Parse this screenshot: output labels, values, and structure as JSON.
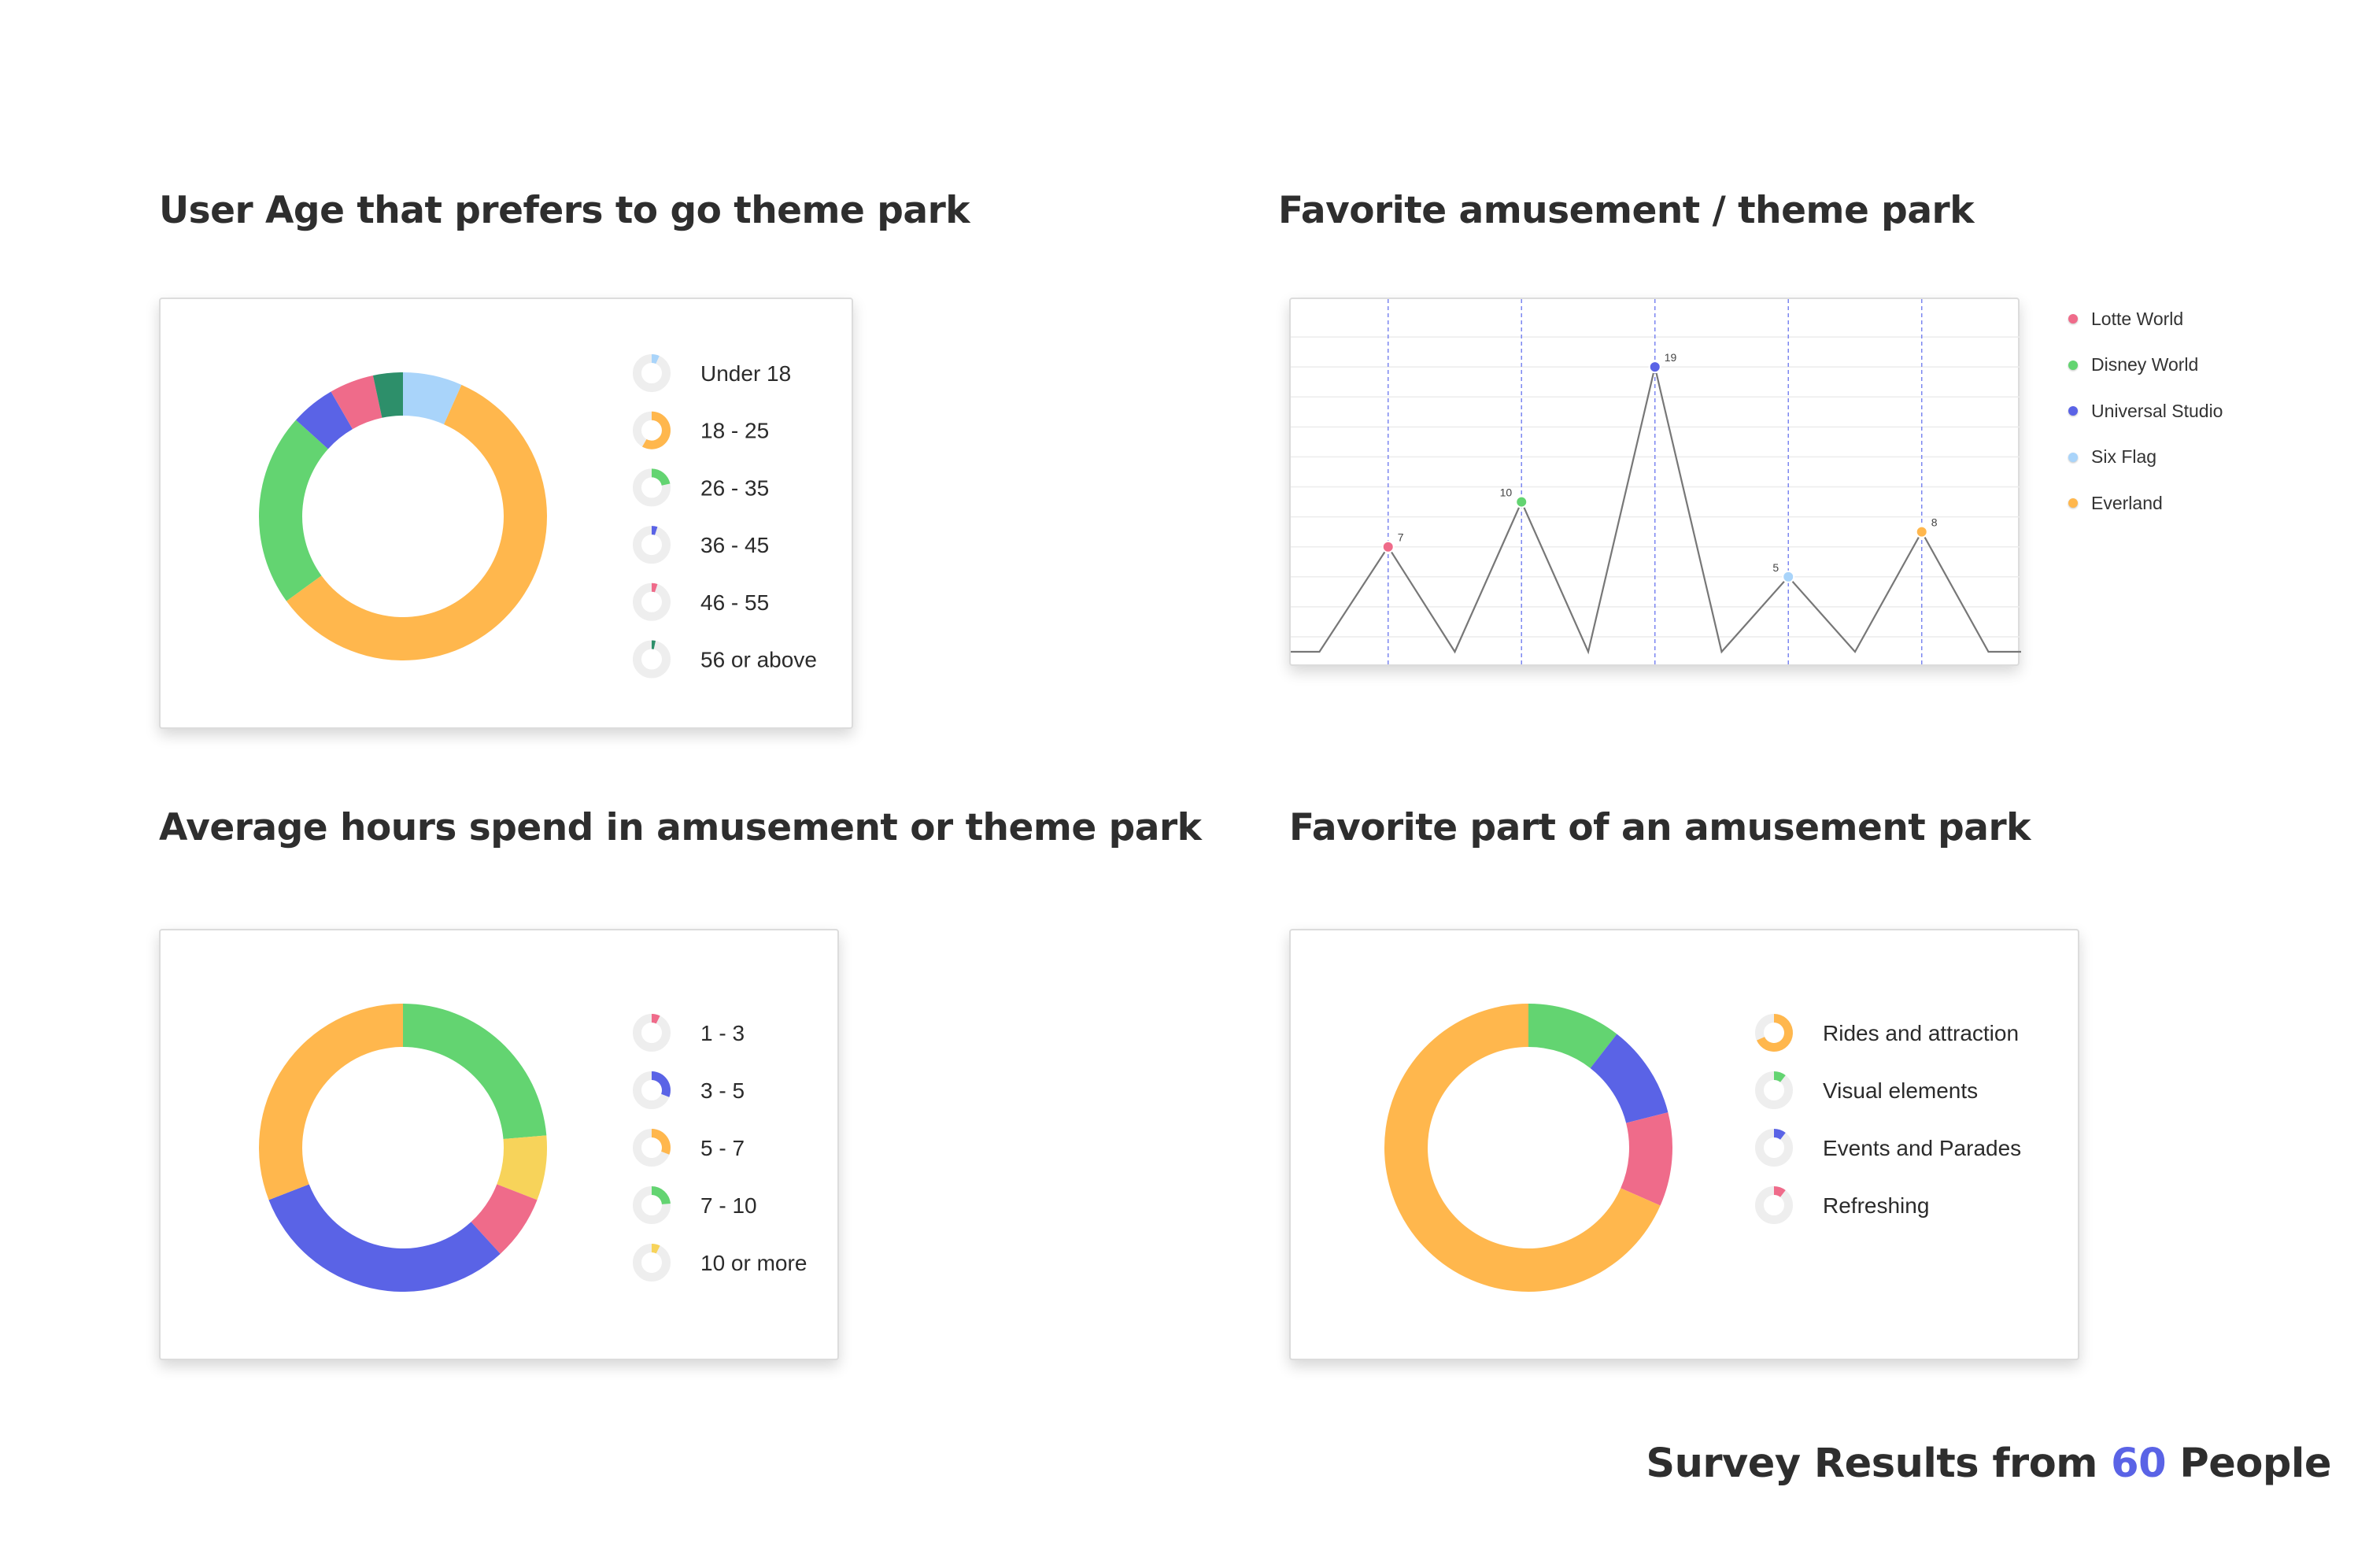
{
  "footer": {
    "prefix": "Survey Results from",
    "count": "60",
    "suffix": "People",
    "count_color": "#5a63e6"
  },
  "colors": {
    "orange": "#ffb74d",
    "green": "#63d471",
    "blue": "#5a63e6",
    "pink": "#ef6b8a",
    "teal": "#2d8f6a",
    "lightblue": "#a9d4fa",
    "yellow": "#f7d35a",
    "track": "#eeeeee"
  },
  "chart_data": [
    {
      "type": "pie",
      "variant": "donut",
      "title": "User Age that prefers to go theme park",
      "categories": [
        "Under 18",
        "18 - 25",
        "26 - 35",
        "36 - 45",
        "46 - 55",
        "56 or above"
      ],
      "values": [
        4,
        35,
        13,
        3,
        3,
        2
      ],
      "colors": [
        "#a9d4fa",
        "#ffb74d",
        "#63d471",
        "#5a63e6",
        "#ef6b8a",
        "#2d8f6a"
      ],
      "order": [
        0,
        1,
        2,
        3,
        4,
        5
      ]
    },
    {
      "type": "line",
      "title": "Favorite amusement / theme park",
      "categories": [
        "Lotte World",
        "Disney World",
        "Universal Studio",
        "Six Flag",
        "Everland"
      ],
      "values": [
        7,
        10,
        19,
        5,
        8
      ],
      "labels": [
        "7",
        "10",
        "19",
        "5",
        "8"
      ],
      "colors": [
        "#ef6b8a",
        "#63d471",
        "#5a63e6",
        "#a9d4fa",
        "#ffb74d"
      ],
      "ylim": [
        0,
        23
      ],
      "grid": true,
      "legend": "right"
    },
    {
      "type": "pie",
      "variant": "donut",
      "title": "Average hours spend in amusement or theme park",
      "categories": [
        "1 - 3",
        "3 - 5",
        "5 - 7",
        "7 - 10",
        "10 or more"
      ],
      "values": [
        4,
        17,
        17,
        13,
        4
      ],
      "colors": [
        "#ef6b8a",
        "#5a63e6",
        "#ffb74d",
        "#63d471",
        "#f7d35a"
      ],
      "order": [
        3,
        4,
        0,
        1,
        2
      ]
    },
    {
      "type": "pie",
      "variant": "donut",
      "title": "Favorite part of an amusement park",
      "categories": [
        "Rides and attraction",
        "Visual elements",
        "Events and Parades",
        "Refreshing"
      ],
      "values": [
        39,
        6,
        6,
        6
      ],
      "colors": [
        "#ffb74d",
        "#63d471",
        "#5a63e6",
        "#ef6b8a"
      ],
      "order": [
        1,
        2,
        3,
        0
      ]
    }
  ]
}
